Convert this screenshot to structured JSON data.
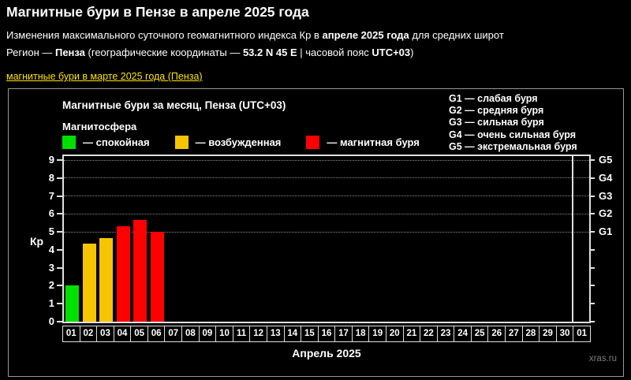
{
  "header": {
    "title": "Магнитные бури в Пензе в апреле 2025 года",
    "line1": {
      "p1": "Изменения максимального суточного геомагнитного индекса Кр в ",
      "p2": "апреле 2025 года",
      "p3": " для средних широт"
    },
    "line2": {
      "p1": "Регион — ",
      "p2": "Пенза",
      "p3": " (географические координаты — ",
      "p4": "53.2 N 45 E",
      "p5": " | часовой пояс ",
      "p6": "UTC+03",
      "p7": ")"
    },
    "prev_month_link": "магнитные бури в марте 2025 года (Пенза)",
    "link_color": "#ffe400"
  },
  "chart": {
    "title": "Магнитные бури за месяц, Пенза (UTC+03)",
    "magnetosphere_label": "Магнитосфера",
    "legend": [
      {
        "label": "— спокойная",
        "color": "#00e000",
        "state": "quiet"
      },
      {
        "label": "— возбужденная",
        "color": "#f7c500",
        "state": "excited"
      },
      {
        "label": "— магнитная буря",
        "color": "#ff0000",
        "state": "storm"
      }
    ],
    "g_legend": [
      "G1 — слабая буря",
      "G2 — средняя буря",
      "G3 — сильная буря",
      "G4 — очень сильная буря",
      "G5 — экстремальная буря"
    ],
    "watermark": "xras.ru"
  },
  "chart_data": {
    "type": "bar",
    "title": "Магнитные бури за месяц, Пенза (UTC+03)",
    "xlabel": "Апрель 2025",
    "ylabel": "Кр",
    "ylim": [
      0,
      9
    ],
    "yticks": [
      0,
      1,
      2,
      3,
      4,
      5,
      6,
      7,
      8,
      9
    ],
    "gridlines_at": [
      5,
      6,
      7,
      8,
      9
    ],
    "grid_style": "dotted-horizontal",
    "legend_position": "top-left",
    "right_axis": [
      {
        "kp": 5,
        "label": "G1"
      },
      {
        "kp": 6,
        "label": "G2"
      },
      {
        "kp": 7,
        "label": "G3"
      },
      {
        "kp": 8,
        "label": "G4"
      },
      {
        "kp": 9,
        "label": "G5"
      }
    ],
    "categories": [
      "01",
      "02",
      "03",
      "04",
      "05",
      "06",
      "07",
      "08",
      "09",
      "10",
      "11",
      "12",
      "13",
      "14",
      "15",
      "16",
      "17",
      "18",
      "19",
      "20",
      "21",
      "22",
      "23",
      "24",
      "25",
      "26",
      "27",
      "28",
      "29",
      "30",
      "01"
    ],
    "values": [
      2,
      4.33,
      4.67,
      5.33,
      5.67,
      5,
      null,
      null,
      null,
      null,
      null,
      null,
      null,
      null,
      null,
      null,
      null,
      null,
      null,
      null,
      null,
      null,
      null,
      null,
      null,
      null,
      null,
      null,
      null,
      null,
      null
    ],
    "bar_colors": [
      "#00e000",
      "#f7c500",
      "#f7c500",
      "#ff0000",
      "#ff0000",
      "#ff0000",
      null,
      null,
      null,
      null,
      null,
      null,
      null,
      null,
      null,
      null,
      null,
      null,
      null,
      null,
      null,
      null,
      null,
      null,
      null,
      null,
      null,
      null,
      null,
      null,
      null
    ],
    "month_separator_after_index": 29
  }
}
